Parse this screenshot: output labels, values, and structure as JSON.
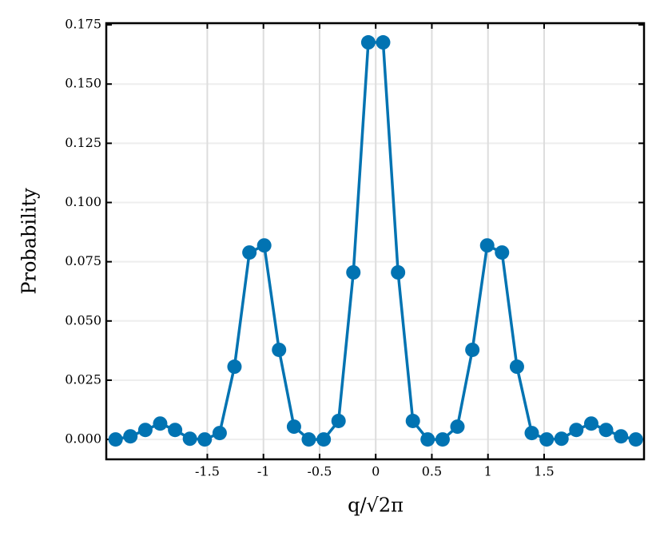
{
  "chart_data": {
    "type": "line",
    "xlabel": "q/√2π",
    "ylabel": "Probability",
    "x": [
      -2.317,
      -2.185,
      -2.052,
      -1.92,
      -1.787,
      -1.655,
      -1.523,
      -1.39,
      -1.258,
      -1.125,
      -0.993,
      -0.861,
      -0.728,
      -0.596,
      -0.463,
      -0.331,
      -0.199,
      -0.066,
      0.066,
      0.199,
      0.331,
      0.463,
      0.596,
      0.728,
      0.861,
      0.993,
      1.125,
      1.258,
      1.39,
      1.523,
      1.655,
      1.787,
      1.92,
      2.052,
      2.185,
      2.317
    ],
    "series": [
      {
        "color": "#0173b2",
        "values": [
          0.0,
          0.0013,
          0.004,
          0.0067,
          0.004,
          0.0003,
          0.0,
          0.0027,
          0.0307,
          0.0789,
          0.0819,
          0.0378,
          0.0054,
          0.0,
          0.0,
          0.0078,
          0.0705,
          0.1676,
          0.1676,
          0.0705,
          0.0078,
          0.0,
          0.0,
          0.0054,
          0.0378,
          0.0819,
          0.0789,
          0.0307,
          0.0027,
          0.0,
          0.0003,
          0.004,
          0.0067,
          0.004,
          0.0013,
          0.0
        ]
      }
    ],
    "xlim": [
      -2.4,
      2.39
    ],
    "ylim": [
      -0.0084,
      0.1757
    ],
    "xticks": [
      -1.5,
      -1,
      -0.5,
      0,
      0.5,
      1,
      1.5
    ],
    "yticks": [
      {
        "value": 0,
        "label": "0.000"
      },
      {
        "value": 0.025,
        "label": "0.025"
      },
      {
        "value": 0.05,
        "label": "0.050"
      },
      {
        "value": 0.075,
        "label": "0.075"
      },
      {
        "value": 0.1,
        "label": "0.100"
      },
      {
        "value": 0.125,
        "label": "0.125"
      },
      {
        "value": 0.15,
        "label": "0.150"
      },
      {
        "value": 0.175,
        "label": "0.175"
      }
    ],
    "grid": true
  }
}
